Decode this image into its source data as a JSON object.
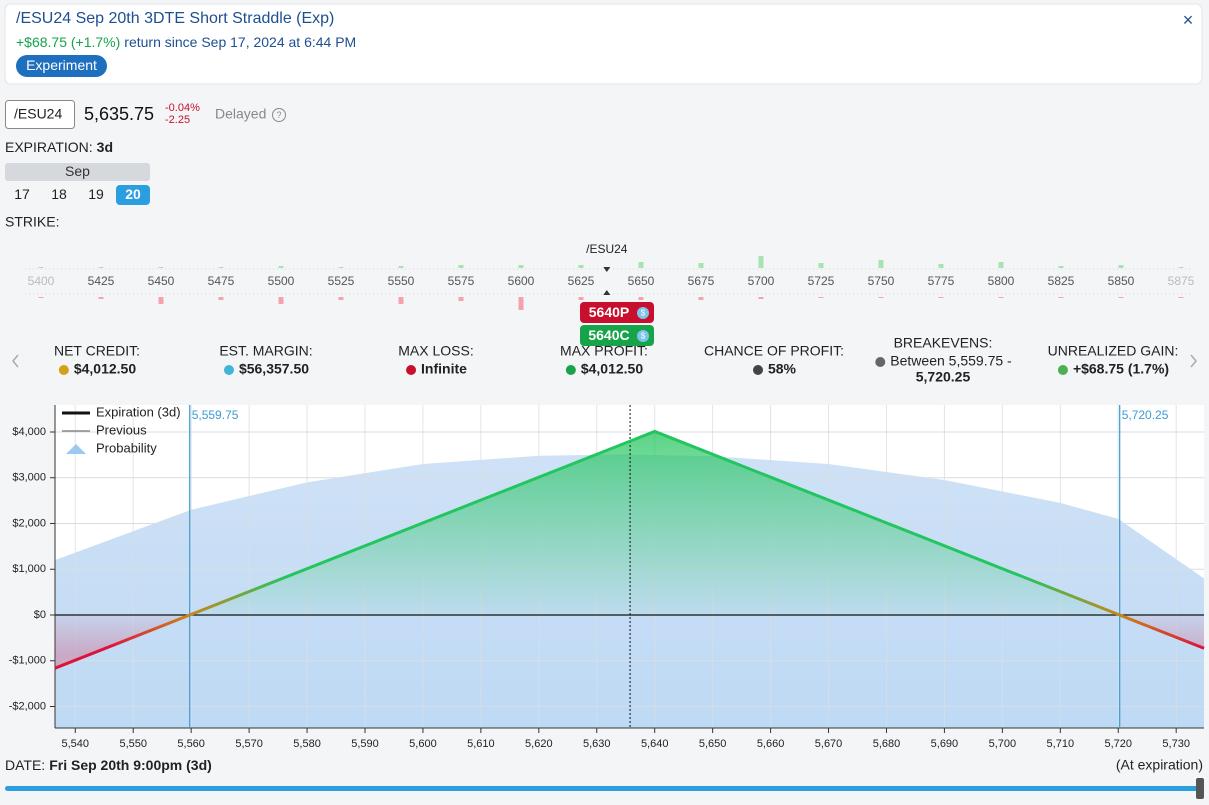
{
  "header": {
    "title": "/ESU24 Sep 20th 3DTE Short Straddle (Exp)",
    "return_value": "+$68.75 (+1.7%)",
    "return_text": "return since Sep 17, 2024 at 6:44 PM",
    "badge": "Experiment",
    "close": "×"
  },
  "quote": {
    "symbol": "/ESU24",
    "price": "5,635.75",
    "change_pct": "-0.04%",
    "change": "-2.25",
    "delayed": "Delayed",
    "help": "?"
  },
  "expiration": {
    "label": "EXPIRATION:",
    "value": "3d",
    "month": "Sep",
    "days": [
      "17",
      "18",
      "19",
      "20"
    ]
  },
  "strike": {
    "label": "STRIKE:",
    "underlying": "/ESU24",
    "strikes": [
      5400,
      5425,
      5450,
      5475,
      5500,
      5525,
      5550,
      5575,
      5600,
      5625,
      5650,
      5675,
      5700,
      5725,
      5750,
      5775,
      5800,
      5825,
      5850,
      5875
    ],
    "call_oi": [
      1,
      1,
      1,
      1,
      2,
      1,
      2,
      3,
      3,
      3,
      6,
      5,
      12,
      5,
      8,
      4,
      6,
      2,
      3,
      1
    ],
    "put_oi": [
      1,
      2,
      7,
      3,
      7,
      3,
      7,
      4,
      13,
      3,
      3,
      3,
      2,
      1,
      1,
      1,
      1,
      1,
      1,
      1
    ],
    "legs": [
      {
        "label": "5640P",
        "icon": "$",
        "color": "#c8102e"
      },
      {
        "label": "5640C",
        "icon": "$",
        "color": "#16a34a"
      }
    ]
  },
  "stats": [
    {
      "label": "NET CREDIT:",
      "value": "$4,012.50"
    },
    {
      "label": "EST. MARGIN:",
      "value": "$56,357.50"
    },
    {
      "label": "MAX LOSS:",
      "value": "Infinite"
    },
    {
      "label": "MAX PROFIT:",
      "value": "$4,012.50"
    },
    {
      "label": "CHANCE OF PROFIT:",
      "value": "58%"
    },
    {
      "label": "BREAKEVENS:",
      "value": [
        "Between 5,559.75 -",
        "5,720.25"
      ]
    },
    {
      "label": "UNREALIZED GAIN:",
      "value": "+$68.75 (1.7%)"
    }
  ],
  "chart_data": {
    "type": "line",
    "xlim": [
      5536.5,
      5734.8
    ],
    "ylim": [
      -2470,
      4590
    ],
    "xticks": [
      {
        "value": 5540,
        "label": "5,540"
      },
      {
        "value": 5550,
        "label": "5,550"
      },
      {
        "value": 5560,
        "label": "5,560"
      },
      {
        "value": 5570,
        "label": "5,570"
      },
      {
        "value": 5580,
        "label": "5,580"
      },
      {
        "value": 5590,
        "label": "5,590"
      },
      {
        "value": 5600,
        "label": "5,600"
      },
      {
        "value": 5610,
        "label": "5,610"
      },
      {
        "value": 5620,
        "label": "5,620"
      },
      {
        "value": 5630,
        "label": "5,630"
      },
      {
        "value": 5640,
        "label": "5,640"
      },
      {
        "value": 5650,
        "label": "5,650"
      },
      {
        "value": 5660,
        "label": "5,660"
      },
      {
        "value": 5670,
        "label": "5,670"
      },
      {
        "value": 5680,
        "label": "5,680"
      },
      {
        "value": 5690,
        "label": "5,690"
      },
      {
        "value": 5700,
        "label": "5,700"
      },
      {
        "value": 5710,
        "label": "5,710"
      },
      {
        "value": 5720,
        "label": "5,720"
      },
      {
        "value": 5730,
        "label": "5,730"
      }
    ],
    "yticks": [
      {
        "value": 4000,
        "label": "$4,000"
      },
      {
        "value": 3000,
        "label": "$3,000"
      },
      {
        "value": 2000,
        "label": "$2,000"
      },
      {
        "value": 1000,
        "label": "$1,000"
      },
      {
        "value": 0,
        "label": "$0"
      },
      {
        "value": -1000,
        "label": "-$1,000"
      },
      {
        "value": -2000,
        "label": "-$2,000"
      }
    ],
    "grid": true,
    "profit_color": "#22c55e",
    "loss_color": "#dc143c",
    "series": [
      {
        "name": "Expiration (3d)",
        "color": "#111111",
        "x": [
          5536.5,
          5559.75,
          5640,
          5720.25,
          5734.8
        ],
        "values": [
          -1162.5,
          0,
          4012.5,
          0,
          -727.5
        ]
      },
      {
        "name": "Previous",
        "color": "#888888",
        "x": [
          5536.5,
          5559.75,
          5640,
          5720.25,
          5734.8
        ],
        "values": [
          -1162.5,
          0,
          4012.5,
          0,
          -727.5
        ]
      },
      {
        "name": "Probability",
        "color": "#9cc9ef",
        "x": [
          5536.5,
          5560,
          5580,
          5600,
          5620,
          5635,
          5650,
          5670,
          5690,
          5710,
          5720,
          5734.8
        ],
        "values": [
          1200,
          2300,
          2900,
          3300,
          3480,
          3510,
          3470,
          3300,
          2950,
          2450,
          2100,
          800
        ]
      }
    ],
    "markers": [
      {
        "x": 5559.75,
        "label": "5,559.75"
      },
      {
        "x": 5720.25,
        "label": "5,720.25"
      }
    ],
    "marker_color": "#3a9bd5",
    "current_price": 5635.75
  },
  "footer": {
    "date_label": "DATE:",
    "date": "Fri Sep 20th 9:00pm (3d)",
    "note": "(At expiration)"
  }
}
